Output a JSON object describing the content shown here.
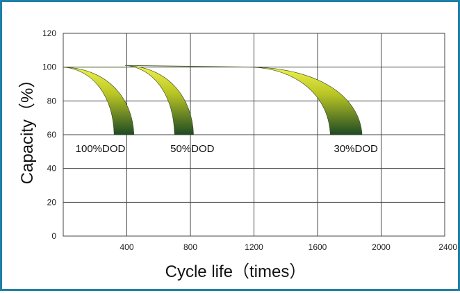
{
  "chart_data": {
    "type": "line",
    "xlabel": "Cycle life（times）",
    "ylabel": "Capacity（%）",
    "xlim": [
      0,
      2400
    ],
    "ylim": [
      0,
      120
    ],
    "x_ticks": [
      400,
      800,
      1200,
      1600,
      2000,
      2400
    ],
    "y_ticks": [
      0,
      20,
      40,
      60,
      80,
      100,
      120
    ],
    "grid": true,
    "colors": {
      "band_light": "#e3ea2c",
      "band_dark": "#1f4a24",
      "frame": "#1f7fa6",
      "grid": "#444444"
    },
    "bands": [
      {
        "label": "100%DOD",
        "start_x": 0,
        "start_y": 100,
        "inner_end_x": 320,
        "outer_end_x": 445,
        "end_y": 60,
        "top_end_x": 390
      },
      {
        "label": "50%DOD",
        "start_x": 390,
        "start_y": 101,
        "inner_end_x": 700,
        "outer_end_x": 820,
        "end_y": 60,
        "top_end_x": 1190
      },
      {
        "label": "30%DOD",
        "start_x": 1190,
        "start_y": 100,
        "inner_end_x": 1680,
        "outer_end_x": 1880,
        "end_y": 60,
        "top_end_x": 1190
      }
    ]
  }
}
